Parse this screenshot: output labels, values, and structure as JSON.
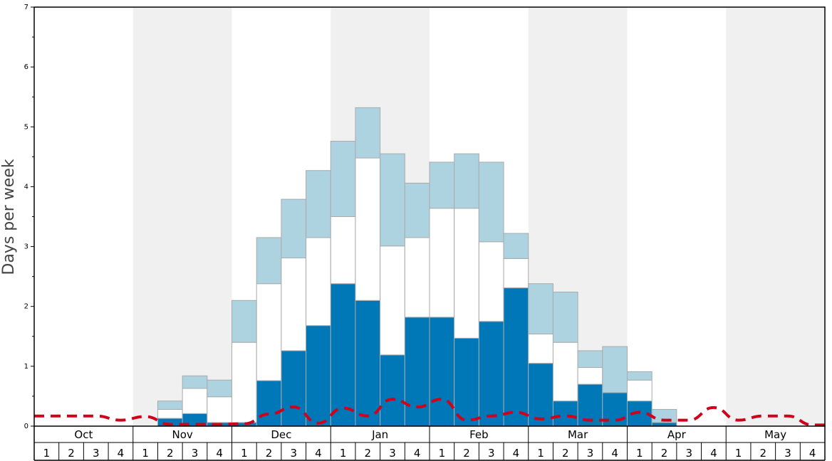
{
  "chart_data": {
    "type": "bar",
    "stacked": true,
    "ylabel": "Days per week",
    "ylim": [
      0,
      7
    ],
    "yticks": [
      "0",
      "1",
      "2",
      "3",
      "4",
      "5",
      "6",
      "7"
    ],
    "months": [
      "Oct",
      "Nov",
      "Dec",
      "Jan",
      "Feb",
      "Mar",
      "Apr",
      "May"
    ],
    "weeks": [
      "1",
      "2",
      "3",
      "4"
    ],
    "shaded_months": [
      "Nov",
      "Jan",
      "Mar",
      "May"
    ],
    "colors": {
      "dark_blue": "#0077b6",
      "white": "#ffffff",
      "light_blue": "#add3e0",
      "dashed_line": "#d0021b",
      "month_shade": "#f0f0f0",
      "bar_border": "#aaaaaa"
    },
    "series": [
      {
        "color": "#0077b6",
        "values": [
          0,
          0,
          0,
          0,
          0,
          0.13,
          0.21,
          0.06,
          0.06,
          0.76,
          1.26,
          1.68,
          2.38,
          2.1,
          1.19,
          1.82,
          1.82,
          1.47,
          1.75,
          2.31,
          1.05,
          0.42,
          0.7,
          0.56,
          0.42,
          0.06,
          0,
          0,
          0,
          0,
          0,
          0
        ]
      },
      {
        "color": "#ffffff",
        "values": [
          0,
          0,
          0,
          0,
          0,
          0.15,
          0.42,
          0.43,
          1.34,
          1.62,
          1.55,
          1.47,
          1.12,
          2.38,
          1.82,
          1.33,
          1.82,
          2.17,
          1.33,
          0.49,
          0.49,
          0.98,
          0.28,
          0,
          0.35,
          0,
          0,
          0,
          0,
          0,
          0,
          0
        ]
      },
      {
        "color": "#add3e0",
        "values": [
          0,
          0,
          0,
          0,
          0,
          0.14,
          0.21,
          0.28,
          0.7,
          0.77,
          0.98,
          1.12,
          1.26,
          0.84,
          1.54,
          0.91,
          0.77,
          0.91,
          1.33,
          0.42,
          0.84,
          0.84,
          0.28,
          0.77,
          0.14,
          0.22,
          0,
          0,
          0,
          0,
          0,
          0
        ]
      }
    ],
    "dashed_line": {
      "color": "#d0021b",
      "values": [
        0.17,
        0.17,
        0.17,
        0.1,
        0.16,
        0.03,
        0.03,
        0.03,
        0.04,
        0.2,
        0.32,
        0.05,
        0.3,
        0.17,
        0.45,
        0.32,
        0.45,
        0.1,
        0.17,
        0.23,
        0.12,
        0.17,
        0.1,
        0.1,
        0.23,
        0.1,
        0.1,
        0.31,
        0.1,
        0.17,
        0.17,
        0.02
      ]
    }
  }
}
